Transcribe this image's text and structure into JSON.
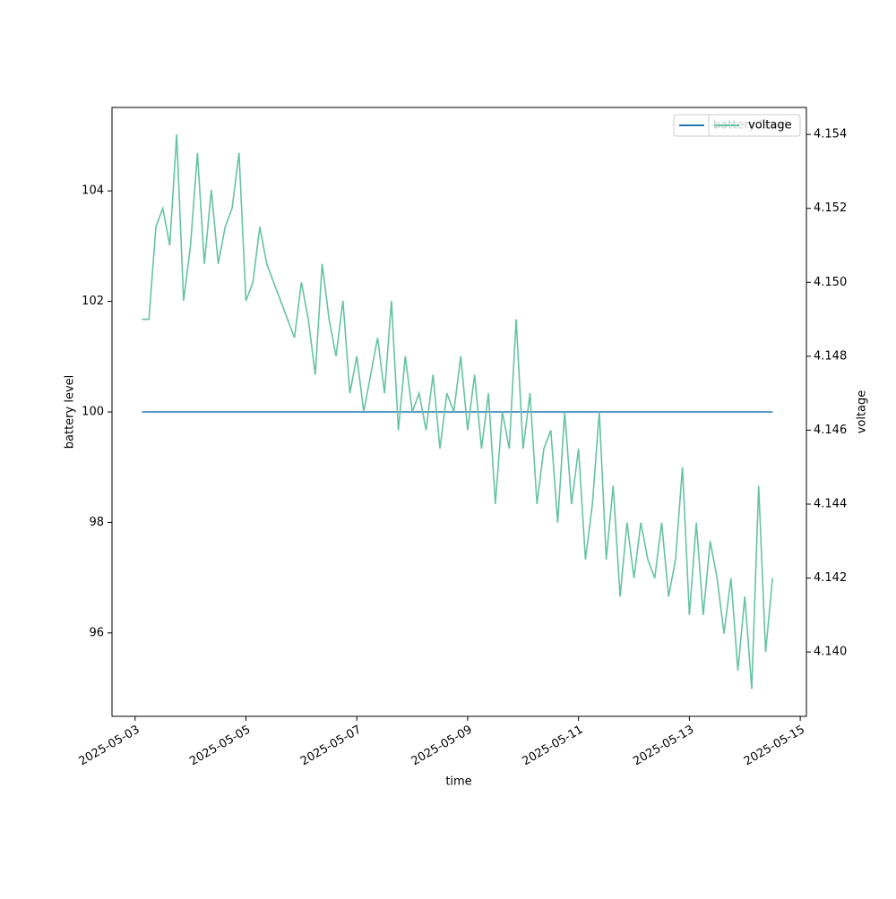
{
  "chart_data": {
    "type": "line",
    "x_label": "time",
    "y_label": "battery level",
    "y2_label": "voltage",
    "x": [
      "2025-05-03T03:00",
      "2025-05-03T06:00",
      "2025-05-03T09:00",
      "2025-05-03T12:00",
      "2025-05-03T15:00",
      "2025-05-03T18:00",
      "2025-05-03T21:00",
      "2025-05-04T00:00",
      "2025-05-04T03:00",
      "2025-05-04T06:00",
      "2025-05-04T09:00",
      "2025-05-04T12:00",
      "2025-05-04T15:00",
      "2025-05-04T18:00",
      "2025-05-04T21:00",
      "2025-05-05T00:00",
      "2025-05-05T03:00",
      "2025-05-05T06:00",
      "2025-05-05T09:00",
      "2025-05-05T12:00",
      "2025-05-05T15:00",
      "2025-05-05T18:00",
      "2025-05-05T21:00",
      "2025-05-06T00:00",
      "2025-05-06T03:00",
      "2025-05-06T06:00",
      "2025-05-06T09:00",
      "2025-05-06T12:00",
      "2025-05-06T15:00",
      "2025-05-06T18:00",
      "2025-05-06T21:00",
      "2025-05-07T00:00",
      "2025-05-07T03:00",
      "2025-05-07T06:00",
      "2025-05-07T09:00",
      "2025-05-07T12:00",
      "2025-05-07T15:00",
      "2025-05-07T18:00",
      "2025-05-07T21:00",
      "2025-05-08T00:00",
      "2025-05-08T03:00",
      "2025-05-08T06:00",
      "2025-05-08T09:00",
      "2025-05-08T12:00",
      "2025-05-08T15:00",
      "2025-05-08T18:00",
      "2025-05-08T21:00",
      "2025-05-09T00:00",
      "2025-05-09T03:00",
      "2025-05-09T06:00",
      "2025-05-09T09:00",
      "2025-05-09T12:00",
      "2025-05-09T15:00",
      "2025-05-09T18:00",
      "2025-05-09T21:00",
      "2025-05-10T00:00",
      "2025-05-10T03:00",
      "2025-05-10T06:00",
      "2025-05-10T09:00",
      "2025-05-10T12:00",
      "2025-05-10T15:00",
      "2025-05-10T18:00",
      "2025-05-10T21:00",
      "2025-05-11T00:00",
      "2025-05-11T03:00",
      "2025-05-11T06:00",
      "2025-05-11T09:00",
      "2025-05-11T12:00",
      "2025-05-11T15:00",
      "2025-05-11T18:00",
      "2025-05-11T21:00",
      "2025-05-12T00:00",
      "2025-05-12T03:00",
      "2025-05-12T06:00",
      "2025-05-12T09:00",
      "2025-05-12T12:00",
      "2025-05-12T15:00",
      "2025-05-12T18:00",
      "2025-05-12T21:00",
      "2025-05-13T00:00",
      "2025-05-13T03:00",
      "2025-05-13T06:00",
      "2025-05-13T09:00",
      "2025-05-13T12:00",
      "2025-05-13T15:00",
      "2025-05-13T18:00",
      "2025-05-13T21:00",
      "2025-05-14T00:00",
      "2025-05-14T03:00",
      "2025-05-14T06:00",
      "2025-05-14T09:00",
      "2025-05-14T12:00"
    ],
    "series": [
      {
        "name": "battery level",
        "color": "#1f77b4",
        "values": [
          100,
          100,
          100,
          100,
          100,
          100,
          100,
          100,
          100,
          100,
          100,
          100,
          100,
          100,
          100,
          100,
          100,
          100,
          100,
          100,
          100,
          100,
          100,
          100,
          100,
          100,
          100,
          100,
          100,
          100,
          100,
          100,
          100,
          100,
          100,
          100,
          100,
          100,
          100,
          100,
          100,
          100,
          100,
          100,
          100,
          100,
          100,
          100,
          100,
          100,
          100,
          100,
          100,
          100,
          100,
          100,
          100,
          100,
          100,
          100,
          100,
          100,
          100,
          100,
          100,
          100,
          100,
          100,
          100,
          100,
          100,
          100,
          100,
          100,
          100,
          100,
          100,
          100,
          100,
          100,
          100,
          100,
          100,
          100,
          100,
          100,
          100,
          100,
          100,
          100,
          100,
          100
        ]
      },
      {
        "name": "voltage",
        "color": "#66c2a5",
        "axis": "y2",
        "values": [
          4.149,
          4.149,
          4.1515,
          4.152,
          4.151,
          4.154,
          4.1495,
          4.151,
          4.1535,
          4.1505,
          4.1525,
          4.1505,
          4.1515,
          4.152,
          4.1535,
          4.1495,
          4.15,
          4.1515,
          4.1505,
          4.15,
          4.1495,
          4.149,
          4.1485,
          4.15,
          4.149,
          4.1475,
          4.1505,
          4.149,
          4.148,
          4.1495,
          4.147,
          4.148,
          4.1465,
          4.1475,
          4.1485,
          4.147,
          4.1495,
          4.146,
          4.148,
          4.1465,
          4.147,
          4.146,
          4.1475,
          4.1455,
          4.147,
          4.1465,
          4.148,
          4.146,
          4.1475,
          4.1455,
          4.147,
          4.144,
          4.1465,
          4.1455,
          4.149,
          4.1455,
          4.147,
          4.144,
          4.1455,
          4.146,
          4.1435,
          4.1465,
          4.144,
          4.1455,
          4.1425,
          4.144,
          4.1465,
          4.1425,
          4.1445,
          4.1415,
          4.1435,
          4.142,
          4.1435,
          4.1425,
          4.142,
          4.1435,
          4.1415,
          4.1425,
          4.145,
          4.141,
          4.1435,
          4.141,
          4.143,
          4.142,
          4.1405,
          4.142,
          4.1395,
          4.1415,
          4.139,
          4.1445,
          4.14,
          4.142
        ]
      }
    ],
    "xlim": [
      "2025-05-02T14:00",
      "2025-05-15T02:40"
    ],
    "xticks": [
      "2025-05-03",
      "2025-05-05",
      "2025-05-07",
      "2025-05-09",
      "2025-05-11",
      "2025-05-13",
      "2025-05-15"
    ],
    "ylim": [
      94.49,
      105.51
    ],
    "yticks": [
      96,
      98,
      100,
      102,
      104
    ],
    "y2lim": [
      4.13826,
      4.15473
    ],
    "y2ticks": [
      {
        "value": 4.14,
        "label": "4.140"
      },
      4.142,
      4.144,
      4.146,
      4.148,
      {
        "value": 4.15,
        "label": "4.150"
      },
      4.152,
      4.154
    ],
    "legend": "upper right"
  }
}
